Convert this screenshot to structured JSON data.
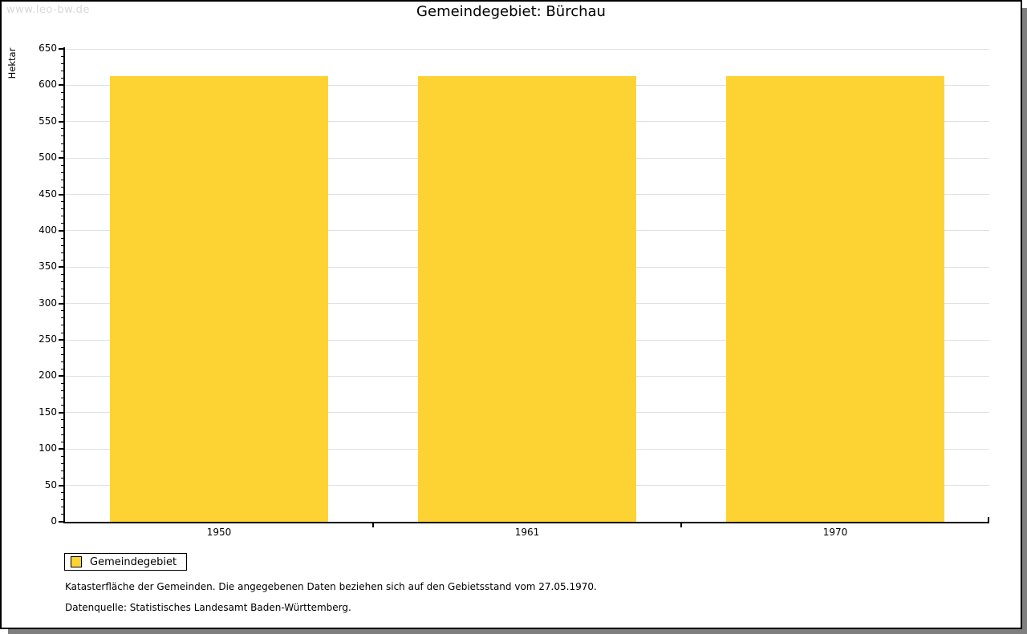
{
  "watermark": "www.leo-bw.de",
  "header": {
    "title": "Gemeindegebiet: Bürchau"
  },
  "chart_data": {
    "type": "bar",
    "title": "Gemeindegebiet: Bürchau",
    "xlabel": "",
    "ylabel": "Hektar",
    "categories": [
      "1950",
      "1961",
      "1970"
    ],
    "series": [
      {
        "name": "Gemeindegebiet",
        "values": [
          612,
          612,
          612
        ]
      }
    ],
    "ylim": [
      0,
      650
    ],
    "yticks": [
      0,
      50,
      100,
      150,
      200,
      250,
      300,
      350,
      400,
      450,
      500,
      550,
      600,
      650
    ],
    "ytick_minor_step": 10,
    "grid": "horizontal-major-only",
    "legend_position": "bottom-left",
    "bar_color": "#fdd333"
  },
  "legend": {
    "items": [
      {
        "label": "Gemeindegebiet",
        "color": "#fdd333"
      }
    ]
  },
  "footnotes": {
    "line1": "Katasterfläche der Gemeinden. Die angegebenen Daten beziehen sich auf den Gebietsstand vom 27.05.1970.",
    "line2": "Datenquelle: Statistisches Landesamt Baden-Württemberg."
  },
  "colors": {
    "bar": "#fdd333",
    "grid": "#e0e0e0",
    "axis": "#000000",
    "watermark": "#d9d9d9",
    "frame_shadow": "#7f7f7f"
  }
}
